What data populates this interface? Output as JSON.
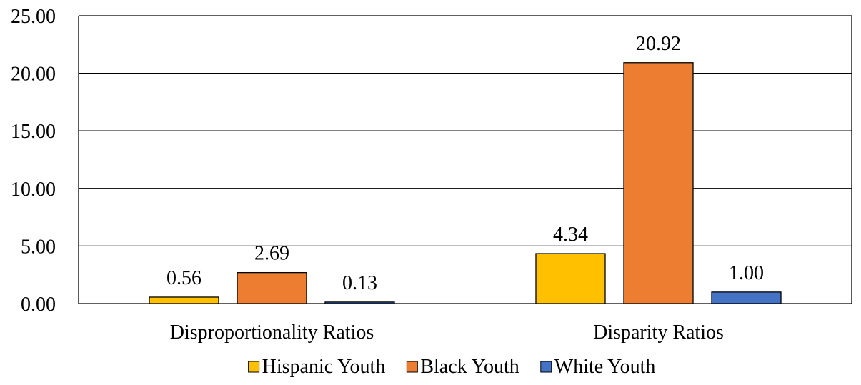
{
  "chart_data": {
    "type": "bar",
    "title": "",
    "xlabel": "",
    "ylabel": "",
    "categories": [
      "Disproportionality Ratios",
      "Disparity Ratios"
    ],
    "series": [
      {
        "name": "Hispanic Youth",
        "values": [
          0.56,
          4.34
        ],
        "color": "#FFC000"
      },
      {
        "name": "Black Youth",
        "values": [
          2.69,
          20.92
        ],
        "color": "#ED7D31"
      },
      {
        "name": "White Youth",
        "values": [
          0.13,
          1.0
        ],
        "color": "#4472C4"
      }
    ],
    "data_labels": [
      [
        "0.56",
        "4.34"
      ],
      [
        "2.69",
        "20.92"
      ],
      [
        "0.13",
        "1.00"
      ]
    ],
    "ylim": [
      0,
      25
    ],
    "yticks": [
      0,
      5,
      10,
      15,
      20,
      25
    ],
    "ytick_labels": [
      "0.00",
      "5.00",
      "10.00",
      "15.00",
      "20.00",
      "25.00"
    ],
    "grid": true,
    "legend_position": "bottom"
  }
}
